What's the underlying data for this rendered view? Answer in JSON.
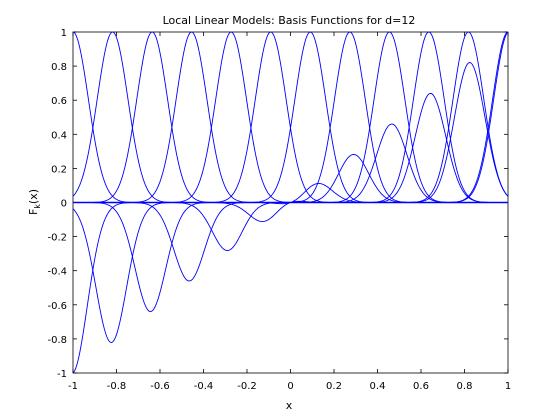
{
  "chart_data": {
    "type": "line",
    "title": "Local Linear Models: Basis Functions for d=12",
    "xlabel": "x",
    "ylabel_main": "F",
    "ylabel_sub": "k",
    "ylabel_arg": "(x)",
    "xlim": [
      -1,
      1
    ],
    "ylim": [
      -1,
      1
    ],
    "x_ticks": [
      -1,
      -0.8,
      -0.6,
      -0.4,
      -0.2,
      0,
      0.2,
      0.4,
      0.6,
      0.8,
      1
    ],
    "x_tick_labels": [
      "-1",
      "-0.8",
      "-0.6",
      "-0.4",
      "-0.2",
      "0",
      "0.2",
      "0.4",
      "0.6",
      "0.8",
      "1"
    ],
    "y_ticks": [
      -1,
      -0.8,
      -0.6,
      -0.4,
      -0.2,
      0,
      0.2,
      0.4,
      0.6,
      0.8,
      1
    ],
    "y_tick_labels": [
      "-1",
      "-0.8",
      "-0.6",
      "-0.4",
      "-0.2",
      "0",
      "0.2",
      "0.4",
      "0.6",
      "0.8",
      "1"
    ],
    "grid": false,
    "line_color": "#0000ff",
    "basis": {
      "count": 12,
      "centers": [
        -1,
        -0.818,
        -0.636,
        -0.455,
        -0.273,
        -0.091,
        0.091,
        0.273,
        0.455,
        0.636,
        0.818,
        1
      ],
      "width": 0.1
    }
  }
}
